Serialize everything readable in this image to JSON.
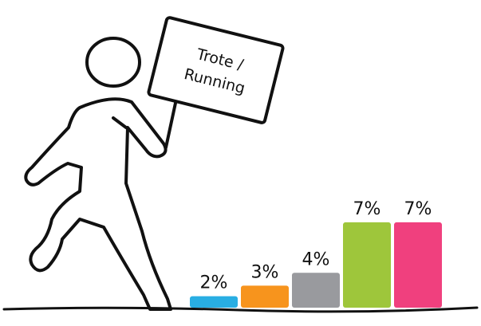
{
  "sign": {
    "line1": "Trote /",
    "line2": "Running"
  },
  "chart_data": {
    "type": "bar",
    "categories": [
      "",
      "",
      "",
      "",
      ""
    ],
    "values": [
      2,
      3,
      4,
      7,
      7
    ],
    "labels": [
      "2%",
      "3%",
      "4%",
      "7%",
      "7%"
    ],
    "colors": [
      "#29aee3",
      "#f7941d",
      "#999a9e",
      "#9ec63b",
      "#f0407e"
    ],
    "ylim": [
      0,
      7.2
    ],
    "grid": false,
    "legend": "none"
  }
}
